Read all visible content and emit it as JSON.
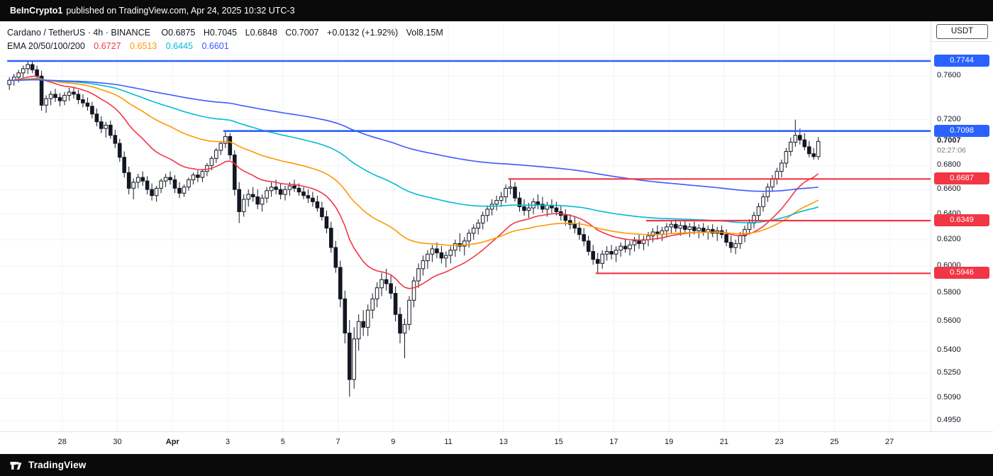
{
  "topbar": {
    "username": "BeInCrypto1",
    "text": "published on TradingView.com, Apr 24, 2025 10:32 UTC-3"
  },
  "header": {
    "symbol_title": "Cardano / TetherUS · 4h · BINANCE",
    "ohlc": [
      {
        "label": "O",
        "value": "0.6875"
      },
      {
        "label": "H",
        "value": "0.7045"
      },
      {
        "label": "L",
        "value": "0.6848"
      },
      {
        "label": "C",
        "value": "0.7007"
      }
    ],
    "change": "+0.0132 (+1.92%)",
    "volume": {
      "label": "Vol",
      "value": "8.15M"
    },
    "ema_label": "EMA 20/50/100/200",
    "ema_values": [
      {
        "value": "0.6727",
        "color": "#F23645"
      },
      {
        "value": "0.6513",
        "color": "#FF9800"
      },
      {
        "value": "0.6445",
        "color": "#00BCD4"
      },
      {
        "value": "0.6601",
        "color": "#3D5AFE"
      }
    ]
  },
  "price_scale": {
    "currency": "USDT",
    "ticks": [
      "0.7600",
      "0.7200",
      "0.6800",
      "0.6600",
      "0.6400",
      "0.6200",
      "0.6000",
      "0.5800",
      "0.5600",
      "0.5400",
      "0.5250",
      "0.5090",
      "0.4950"
    ]
  },
  "current_price": {
    "value": "0.7007",
    "countdown": "02:27:06"
  },
  "time_scale": {
    "ticks": [
      {
        "label": "28",
        "day": 2
      },
      {
        "label": "30",
        "day": 4
      },
      {
        "label": "Apr",
        "day": 6,
        "bold": true
      },
      {
        "label": "3",
        "day": 8
      },
      {
        "label": "5",
        "day": 10
      },
      {
        "label": "7",
        "day": 12
      },
      {
        "label": "9",
        "day": 14
      },
      {
        "label": "11",
        "day": 16
      },
      {
        "label": "13",
        "day": 18
      },
      {
        "label": "15",
        "day": 20
      },
      {
        "label": "17",
        "day": 22
      },
      {
        "label": "19",
        "day": 24
      },
      {
        "label": "21",
        "day": 26
      },
      {
        "label": "23",
        "day": 28
      },
      {
        "label": "25",
        "day": 30
      },
      {
        "label": "27",
        "day": 32
      }
    ]
  },
  "footer": {
    "brand": "TradingView"
  },
  "chart_data": {
    "type": "candlestick",
    "symbol": "ADAUSDT",
    "exchange": "BINANCE",
    "interval": "4h",
    "scale": "log",
    "start_date": "2025-03-26",
    "end_date": "2025-04-24",
    "y_visible_range": [
      0.489,
      0.814
    ],
    "up_color": "#FFFFFF",
    "down_color": "#131722",
    "border_color": "#131722",
    "emas": {
      "periods": [
        20,
        50,
        100,
        200
      ],
      "colors": [
        "#F23645",
        "#FF9800",
        "#00BCD4",
        "#3D5AFE"
      ]
    },
    "levels": [
      {
        "value": "0.7744",
        "price": 0.7744,
        "color": "#2962FF",
        "start_index": 0
      },
      {
        "value": "0.7098",
        "price": 0.7098,
        "color": "#2962FF",
        "start_index": 47
      },
      {
        "value": "0.6687",
        "price": 0.6687,
        "color": "#F23645",
        "start_index": 109
      },
      {
        "value": "0.6349",
        "price": 0.6349,
        "color": "#F23645",
        "start_index": 139
      },
      {
        "value": "0.5946",
        "price": 0.5946,
        "color": "#F23645",
        "start_index": 128
      }
    ],
    "candles": [
      [
        0.752,
        0.759,
        0.747,
        0.756
      ],
      [
        0.756,
        0.762,
        0.751,
        0.759
      ],
      [
        0.759,
        0.766,
        0.754,
        0.763
      ],
      [
        0.763,
        0.77,
        0.758,
        0.767
      ],
      [
        0.767,
        0.7744,
        0.762,
        0.771
      ],
      [
        0.771,
        0.774,
        0.763,
        0.766
      ],
      [
        0.766,
        0.77,
        0.756,
        0.76
      ],
      [
        0.76,
        0.765,
        0.728,
        0.733
      ],
      [
        0.733,
        0.742,
        0.726,
        0.739
      ],
      [
        0.739,
        0.746,
        0.733,
        0.743
      ],
      [
        0.743,
        0.748,
        0.736,
        0.74
      ],
      [
        0.74,
        0.744,
        0.732,
        0.737
      ],
      [
        0.737,
        0.745,
        0.733,
        0.742
      ],
      [
        0.742,
        0.749,
        0.737,
        0.745
      ],
      [
        0.745,
        0.75,
        0.739,
        0.743
      ],
      [
        0.743,
        0.747,
        0.734,
        0.738
      ],
      [
        0.738,
        0.743,
        0.731,
        0.735
      ],
      [
        0.735,
        0.74,
        0.728,
        0.732
      ],
      [
        0.732,
        0.736,
        0.721,
        0.725
      ],
      [
        0.725,
        0.73,
        0.714,
        0.718
      ],
      [
        0.718,
        0.723,
        0.708,
        0.712
      ],
      [
        0.712,
        0.718,
        0.704,
        0.715
      ],
      [
        0.715,
        0.719,
        0.703,
        0.706
      ],
      [
        0.706,
        0.711,
        0.695,
        0.699
      ],
      [
        0.699,
        0.703,
        0.683,
        0.687
      ],
      [
        0.687,
        0.692,
        0.67,
        0.674
      ],
      [
        0.674,
        0.679,
        0.656,
        0.661
      ],
      [
        0.661,
        0.669,
        0.652,
        0.666
      ],
      [
        0.666,
        0.673,
        0.661,
        0.67
      ],
      [
        0.67,
        0.675,
        0.663,
        0.667
      ],
      [
        0.667,
        0.671,
        0.656,
        0.66
      ],
      [
        0.66,
        0.665,
        0.651,
        0.655
      ],
      [
        0.655,
        0.663,
        0.65,
        0.661
      ],
      [
        0.661,
        0.669,
        0.657,
        0.667
      ],
      [
        0.667,
        0.673,
        0.662,
        0.67
      ],
      [
        0.67,
        0.675,
        0.664,
        0.668
      ],
      [
        0.668,
        0.672,
        0.657,
        0.661
      ],
      [
        0.661,
        0.666,
        0.653,
        0.657
      ],
      [
        0.657,
        0.664,
        0.654,
        0.662
      ],
      [
        0.662,
        0.67,
        0.659,
        0.668
      ],
      [
        0.668,
        0.674,
        0.664,
        0.672
      ],
      [
        0.672,
        0.676,
        0.666,
        0.67
      ],
      [
        0.67,
        0.677,
        0.666,
        0.675
      ],
      [
        0.675,
        0.682,
        0.671,
        0.68
      ],
      [
        0.68,
        0.688,
        0.676,
        0.686
      ],
      [
        0.686,
        0.695,
        0.682,
        0.693
      ],
      [
        0.693,
        0.701,
        0.689,
        0.699
      ],
      [
        0.699,
        0.7098,
        0.695,
        0.705
      ],
      [
        0.705,
        0.708,
        0.685,
        0.689
      ],
      [
        0.689,
        0.693,
        0.655,
        0.66
      ],
      [
        0.66,
        0.666,
        0.633,
        0.642
      ],
      [
        0.642,
        0.656,
        0.638,
        0.652
      ],
      [
        0.652,
        0.66,
        0.646,
        0.656
      ],
      [
        0.656,
        0.662,
        0.65,
        0.654
      ],
      [
        0.654,
        0.66,
        0.644,
        0.648
      ],
      [
        0.648,
        0.656,
        0.642,
        0.653
      ],
      [
        0.653,
        0.662,
        0.649,
        0.659
      ],
      [
        0.659,
        0.666,
        0.654,
        0.662
      ],
      [
        0.662,
        0.668,
        0.656,
        0.66
      ],
      [
        0.66,
        0.665,
        0.652,
        0.656
      ],
      [
        0.656,
        0.663,
        0.651,
        0.66
      ],
      [
        0.66,
        0.666,
        0.655,
        0.663
      ],
      [
        0.663,
        0.668,
        0.658,
        0.661
      ],
      [
        0.661,
        0.665,
        0.655,
        0.658
      ],
      [
        0.658,
        0.662,
        0.652,
        0.655
      ],
      [
        0.655,
        0.66,
        0.649,
        0.653
      ],
      [
        0.653,
        0.658,
        0.646,
        0.65
      ],
      [
        0.65,
        0.655,
        0.642,
        0.645
      ],
      [
        0.645,
        0.65,
        0.635,
        0.638
      ],
      [
        0.638,
        0.643,
        0.625,
        0.629
      ],
      [
        0.629,
        0.634,
        0.61,
        0.614
      ],
      [
        0.614,
        0.619,
        0.595,
        0.599
      ],
      [
        0.599,
        0.604,
        0.57,
        0.576
      ],
      [
        0.576,
        0.582,
        0.545,
        0.552
      ],
      [
        0.552,
        0.561,
        0.51,
        0.521
      ],
      [
        0.521,
        0.556,
        0.515,
        0.548
      ],
      [
        0.548,
        0.565,
        0.54,
        0.56
      ],
      [
        0.56,
        0.568,
        0.55,
        0.556
      ],
      [
        0.556,
        0.572,
        0.55,
        0.568
      ],
      [
        0.568,
        0.58,
        0.562,
        0.576
      ],
      [
        0.576,
        0.588,
        0.57,
        0.584
      ],
      [
        0.584,
        0.595,
        0.578,
        0.59
      ],
      [
        0.59,
        0.598,
        0.582,
        0.587
      ],
      [
        0.587,
        0.593,
        0.576,
        0.58
      ],
      [
        0.58,
        0.585,
        0.56,
        0.565
      ],
      [
        0.565,
        0.57,
        0.545,
        0.552
      ],
      [
        0.552,
        0.562,
        0.535,
        0.558
      ],
      [
        0.558,
        0.578,
        0.554,
        0.575
      ],
      [
        0.575,
        0.592,
        0.57,
        0.589
      ],
      [
        0.589,
        0.602,
        0.584,
        0.598
      ],
      [
        0.598,
        0.608,
        0.593,
        0.604
      ],
      [
        0.604,
        0.612,
        0.598,
        0.609
      ],
      [
        0.609,
        0.616,
        0.603,
        0.613
      ],
      [
        0.613,
        0.618,
        0.606,
        0.61
      ],
      [
        0.61,
        0.615,
        0.602,
        0.606
      ],
      [
        0.606,
        0.611,
        0.599,
        0.608
      ],
      [
        0.608,
        0.615,
        0.602,
        0.612
      ],
      [
        0.612,
        0.62,
        0.607,
        0.617
      ],
      [
        0.617,
        0.625,
        0.611,
        0.615
      ],
      [
        0.615,
        0.622,
        0.608,
        0.619
      ],
      [
        0.619,
        0.628,
        0.614,
        0.625
      ],
      [
        0.625,
        0.632,
        0.62,
        0.629
      ],
      [
        0.629,
        0.636,
        0.624,
        0.633
      ],
      [
        0.633,
        0.642,
        0.628,
        0.639
      ],
      [
        0.639,
        0.647,
        0.634,
        0.644
      ],
      [
        0.644,
        0.652,
        0.639,
        0.648
      ],
      [
        0.648,
        0.655,
        0.643,
        0.651
      ],
      [
        0.651,
        0.658,
        0.646,
        0.654
      ],
      [
        0.654,
        0.664,
        0.649,
        0.661
      ],
      [
        0.661,
        0.6687,
        0.656,
        0.662
      ],
      [
        0.662,
        0.666,
        0.65,
        0.653
      ],
      [
        0.653,
        0.658,
        0.642,
        0.646
      ],
      [
        0.646,
        0.652,
        0.639,
        0.643
      ],
      [
        0.643,
        0.649,
        0.637,
        0.645
      ],
      [
        0.645,
        0.653,
        0.64,
        0.65
      ],
      [
        0.65,
        0.656,
        0.644,
        0.648
      ],
      [
        0.648,
        0.654,
        0.641,
        0.644
      ],
      [
        0.644,
        0.65,
        0.638,
        0.647
      ],
      [
        0.647,
        0.652,
        0.641,
        0.645
      ],
      [
        0.645,
        0.65,
        0.639,
        0.642
      ],
      [
        0.642,
        0.647,
        0.635,
        0.639
      ],
      [
        0.639,
        0.644,
        0.631,
        0.635
      ],
      [
        0.635,
        0.64,
        0.628,
        0.632
      ],
      [
        0.632,
        0.638,
        0.625,
        0.629
      ],
      [
        0.629,
        0.634,
        0.62,
        0.624
      ],
      [
        0.624,
        0.629,
        0.615,
        0.619
      ],
      [
        0.619,
        0.623,
        0.608,
        0.611
      ],
      [
        0.611,
        0.616,
        0.601,
        0.605
      ],
      [
        0.605,
        0.61,
        0.5946,
        0.602
      ],
      [
        0.602,
        0.612,
        0.598,
        0.609
      ],
      [
        0.609,
        0.615,
        0.604,
        0.611
      ],
      [
        0.611,
        0.616,
        0.605,
        0.609
      ],
      [
        0.609,
        0.615,
        0.603,
        0.612
      ],
      [
        0.612,
        0.618,
        0.607,
        0.615
      ],
      [
        0.615,
        0.621,
        0.61,
        0.613
      ],
      [
        0.613,
        0.619,
        0.608,
        0.616
      ],
      [
        0.616,
        0.622,
        0.611,
        0.619
      ],
      [
        0.619,
        0.624,
        0.613,
        0.617
      ],
      [
        0.617,
        0.623,
        0.612,
        0.62
      ],
      [
        0.62,
        0.626,
        0.615,
        0.623
      ],
      [
        0.623,
        0.629,
        0.618,
        0.626
      ],
      [
        0.626,
        0.631,
        0.62,
        0.624
      ],
      [
        0.624,
        0.63,
        0.619,
        0.627
      ],
      [
        0.627,
        0.633,
        0.622,
        0.63
      ],
      [
        0.63,
        0.6349,
        0.625,
        0.632
      ],
      [
        0.632,
        0.636,
        0.626,
        0.629
      ],
      [
        0.629,
        0.634,
        0.623,
        0.631
      ],
      [
        0.631,
        0.635,
        0.625,
        0.628
      ],
      [
        0.628,
        0.633,
        0.622,
        0.63
      ],
      [
        0.63,
        0.634,
        0.624,
        0.627
      ],
      [
        0.627,
        0.632,
        0.621,
        0.629
      ],
      [
        0.629,
        0.633,
        0.623,
        0.626
      ],
      [
        0.626,
        0.631,
        0.62,
        0.628
      ],
      [
        0.628,
        0.632,
        0.622,
        0.625
      ],
      [
        0.625,
        0.63,
        0.619,
        0.627
      ],
      [
        0.627,
        0.631,
        0.621,
        0.624
      ],
      [
        0.624,
        0.628,
        0.615,
        0.618
      ],
      [
        0.618,
        0.623,
        0.61,
        0.614
      ],
      [
        0.614,
        0.62,
        0.609,
        0.617
      ],
      [
        0.617,
        0.626,
        0.613,
        0.623
      ],
      [
        0.623,
        0.631,
        0.618,
        0.628
      ],
      [
        0.628,
        0.636,
        0.624,
        0.633
      ],
      [
        0.633,
        0.642,
        0.629,
        0.639
      ],
      [
        0.639,
        0.649,
        0.635,
        0.646
      ],
      [
        0.646,
        0.657,
        0.642,
        0.654
      ],
      [
        0.654,
        0.665,
        0.65,
        0.662
      ],
      [
        0.662,
        0.672,
        0.658,
        0.669
      ],
      [
        0.669,
        0.678,
        0.664,
        0.675
      ],
      [
        0.675,
        0.685,
        0.67,
        0.682
      ],
      [
        0.682,
        0.695,
        0.678,
        0.692
      ],
      [
        0.692,
        0.704,
        0.688,
        0.7
      ],
      [
        0.7,
        0.7199,
        0.696,
        0.706
      ],
      [
        0.706,
        0.712,
        0.698,
        0.702
      ],
      [
        0.702,
        0.708,
        0.693,
        0.696
      ],
      [
        0.696,
        0.701,
        0.687,
        0.69
      ],
      [
        0.69,
        0.695,
        0.6848,
        0.6875
      ],
      [
        0.6875,
        0.7045,
        0.6848,
        0.7007
      ]
    ]
  }
}
